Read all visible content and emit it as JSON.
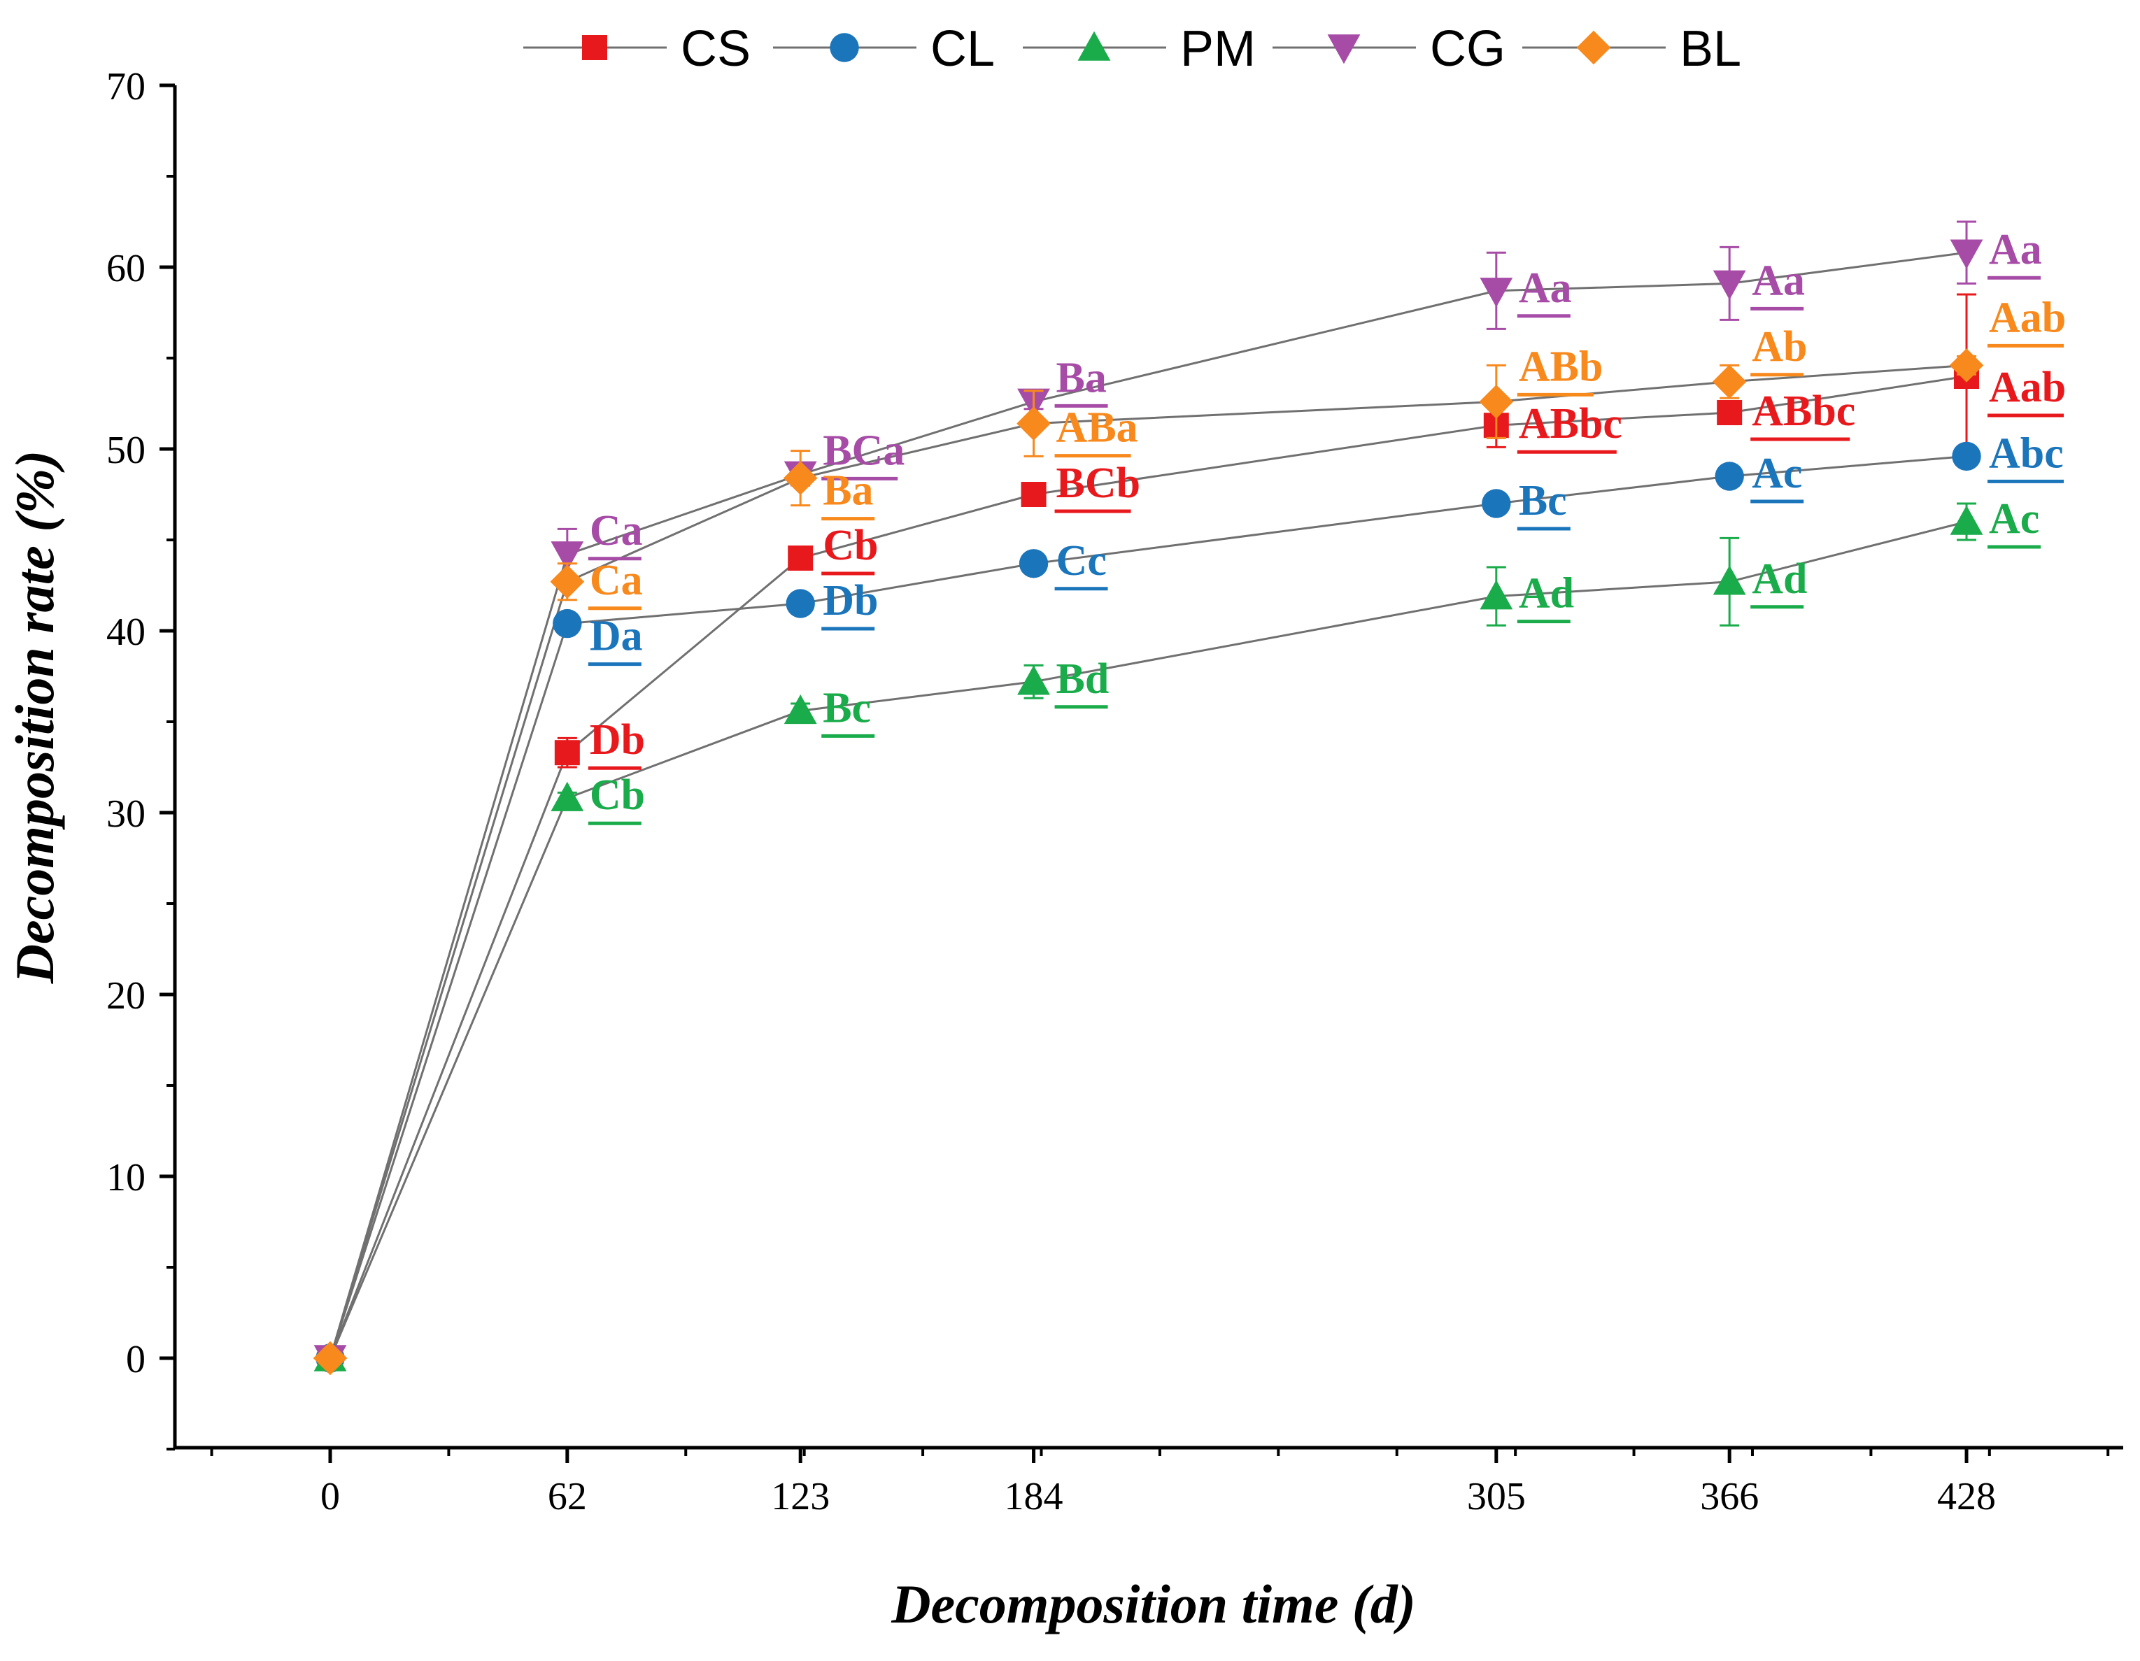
{
  "chart_data": {
    "type": "line",
    "title": "",
    "xlabel": "Decomposition time (d)",
    "ylabel": "Decomposition rate (%)",
    "x": [
      0,
      62,
      123,
      184,
      305,
      366,
      428
    ],
    "x_tick_labels": [
      "0",
      "62",
      "123",
      "184",
      "305",
      "366",
      "428"
    ],
    "ylim": [
      -5,
      70
    ],
    "y_ticks": [
      0,
      10,
      20,
      30,
      40,
      50,
      60,
      70
    ],
    "y_tick_labels": [
      "0",
      "10",
      "20",
      "30",
      "40",
      "50",
      "60",
      "70"
    ],
    "legend_position": "top",
    "series": [
      {
        "name": "CS",
        "color": "#e8191c",
        "marker": "square",
        "values": [
          0,
          33.3,
          44.0,
          47.5,
          51.3,
          52.0,
          54.0
        ],
        "errors": [
          0,
          0.8,
          0.3,
          0.3,
          1.2,
          0.5,
          4.5
        ],
        "labels": [
          "",
          "Db",
          "Cb",
          "BCb",
          "ABbc",
          "ABbc",
          "Aab"
        ]
      },
      {
        "name": "CL",
        "color": "#1b75bb",
        "marker": "circle",
        "values": [
          0,
          40.4,
          41.5,
          43.7,
          47.0,
          48.5,
          49.6
        ],
        "errors": [
          0,
          0.4,
          0.3,
          0.3,
          0.3,
          0.3,
          0.3
        ],
        "labels": [
          "",
          "Da",
          "Db",
          "Cc",
          "Bc",
          "Ac",
          "Abc"
        ]
      },
      {
        "name": "PM",
        "color": "#1aab4b",
        "marker": "triangle-up",
        "values": [
          0,
          30.8,
          35.6,
          37.2,
          41.9,
          42.7,
          46.0
        ],
        "errors": [
          0,
          0.3,
          0.4,
          0.9,
          1.6,
          2.4,
          1.0
        ],
        "labels": [
          "",
          "Cb",
          "Bc",
          "Bd",
          "Ad",
          "Ad",
          "Ac"
        ]
      },
      {
        "name": "CG",
        "color": "#a64ca6",
        "marker": "triangle-down",
        "values": [
          0,
          44.2,
          48.6,
          52.6,
          58.7,
          59.1,
          60.8
        ],
        "errors": [
          0,
          1.4,
          0.6,
          0.4,
          2.1,
          2.0,
          1.7
        ],
        "labels": [
          "",
          "Ca",
          "BCa",
          "Ba",
          "Aa",
          "Aa",
          "Aa"
        ]
      },
      {
        "name": "BL",
        "color": "#f7891d",
        "marker": "diamond",
        "values": [
          0,
          42.7,
          48.4,
          51.4,
          52.6,
          53.7,
          54.6
        ],
        "errors": [
          0,
          1.0,
          1.5,
          1.8,
          2.0,
          0.9,
          0.5
        ],
        "labels": [
          "",
          "Ca",
          "Ba",
          "ABa",
          "ABb",
          "Ab",
          "Aab"
        ]
      }
    ]
  }
}
